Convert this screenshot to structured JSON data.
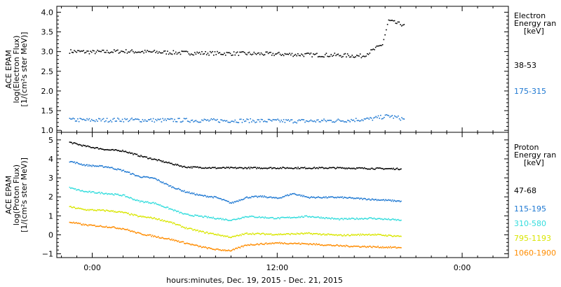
{
  "chart_data": [
    {
      "type": "scatter",
      "panel": "electron",
      "ylabel_lines": [
        "ACE EPAM",
        "log(Electron Flux)",
        "[1/(cm²s ster MeV)]"
      ],
      "legend_title": [
        "Electron",
        "Energy ran",
        "[keV]"
      ],
      "ylim": [
        0.95,
        4.15
      ],
      "yticks": [
        "1.0",
        "1.5",
        "2.0",
        "2.5",
        "3.0",
        "3.5",
        "4.0"
      ],
      "ytick_values": [
        1.0,
        1.5,
        2.0,
        2.5,
        3.0,
        3.5,
        4.0
      ],
      "series": [
        {
          "name": "38-53",
          "color": "#000000",
          "points": [
            [
              -1.5,
              3.02
            ],
            [
              0,
              3.0
            ],
            [
              2,
              3.02
            ],
            [
              4,
              3.0
            ],
            [
              6,
              2.98
            ],
            [
              8,
              2.97
            ],
            [
              10,
              2.96
            ],
            [
              12,
              2.95
            ],
            [
              14,
              2.93
            ],
            [
              16,
              2.92
            ],
            [
              17.5,
              2.9
            ],
            [
              18.2,
              3.05
            ],
            [
              18.8,
              3.2
            ],
            [
              19.2,
              3.8
            ],
            [
              19.8,
              3.72
            ],
            [
              20.2,
              3.7
            ]
          ]
        },
        {
          "name": "175-315",
          "color": "#1e78d2",
          "points": [
            [
              -1.5,
              1.28
            ],
            [
              0,
              1.27
            ],
            [
              2,
              1.28
            ],
            [
              4,
              1.27
            ],
            [
              6,
              1.27
            ],
            [
              8,
              1.26
            ],
            [
              10,
              1.26
            ],
            [
              12,
              1.25
            ],
            [
              14,
              1.25
            ],
            [
              16,
              1.26
            ],
            [
              18,
              1.3
            ],
            [
              19.2,
              1.38
            ],
            [
              20.2,
              1.3
            ]
          ]
        }
      ]
    },
    {
      "type": "scatter",
      "panel": "proton",
      "ylabel_lines": [
        "ACE EPAM",
        "log(Proton Flux)",
        "[1/(cm²s ster MeV)]"
      ],
      "legend_title": [
        "Proton",
        "Energy ran",
        "[keV]"
      ],
      "ylim": [
        -1.2,
        5.4
      ],
      "yticks": [
        "−1",
        "0",
        "1",
        "2",
        "3",
        "4",
        "5"
      ],
      "ytick_values": [
        -1,
        0,
        1,
        2,
        3,
        4,
        5
      ],
      "series": [
        {
          "name": "47-68",
          "color": "#000000",
          "points": [
            [
              -1.5,
              4.9
            ],
            [
              -0.5,
              4.7
            ],
            [
              1,
              4.5
            ],
            [
              2,
              4.45
            ],
            [
              3,
              4.2
            ],
            [
              4,
              4.0
            ],
            [
              5,
              3.8
            ],
            [
              6,
              3.6
            ],
            [
              8,
              3.55
            ],
            [
              12,
              3.55
            ],
            [
              16,
              3.55
            ],
            [
              20,
              3.5
            ]
          ]
        },
        {
          "name": "115-195",
          "color": "#1e78d2",
          "points": [
            [
              -1.5,
              3.9
            ],
            [
              -0.5,
              3.7
            ],
            [
              1,
              3.6
            ],
            [
              2,
              3.4
            ],
            [
              3,
              3.1
            ],
            [
              4,
              3.0
            ],
            [
              5,
              2.6
            ],
            [
              6,
              2.3
            ],
            [
              7,
              2.1
            ],
            [
              8,
              2.0
            ],
            [
              9,
              1.7
            ],
            [
              10,
              2.0
            ],
            [
              11,
              2.05
            ],
            [
              12,
              1.95
            ],
            [
              13,
              2.2
            ],
            [
              14,
              2.0
            ],
            [
              16,
              2.0
            ],
            [
              18,
              1.9
            ],
            [
              20,
              1.8
            ]
          ]
        },
        {
          "name": "310-580",
          "color": "#33dddd",
          "points": [
            [
              -1.5,
              2.5
            ],
            [
              -0.5,
              2.3
            ],
            [
              1,
              2.2
            ],
            [
              2,
              2.1
            ],
            [
              3,
              1.8
            ],
            [
              4,
              1.7
            ],
            [
              5,
              1.4
            ],
            [
              6,
              1.1
            ],
            [
              7,
              1.0
            ],
            [
              8,
              0.9
            ],
            [
              9,
              0.8
            ],
            [
              10,
              1.0
            ],
            [
              12,
              0.9
            ],
            [
              14,
              1.0
            ],
            [
              16,
              0.85
            ],
            [
              18,
              0.9
            ],
            [
              20,
              0.8
            ]
          ]
        },
        {
          "name": "795-1193",
          "color": "#d9e600",
          "points": [
            [
              -1.5,
              1.5
            ],
            [
              -0.5,
              1.35
            ],
            [
              1,
              1.3
            ],
            [
              2,
              1.2
            ],
            [
              3,
              1.0
            ],
            [
              4,
              0.9
            ],
            [
              5,
              0.7
            ],
            [
              6,
              0.4
            ],
            [
              7,
              0.2
            ],
            [
              8,
              0.05
            ],
            [
              9,
              -0.1
            ],
            [
              10,
              0.1
            ],
            [
              12,
              0.05
            ],
            [
              14,
              0.1
            ],
            [
              16,
              0.0
            ],
            [
              18,
              0.05
            ],
            [
              20,
              -0.05
            ]
          ]
        },
        {
          "name": "1060-1900",
          "color": "#ff8c00",
          "points": [
            [
              -1.5,
              0.7
            ],
            [
              -0.5,
              0.55
            ],
            [
              1,
              0.45
            ],
            [
              2,
              0.35
            ],
            [
              3,
              0.1
            ],
            [
              4,
              -0.05
            ],
            [
              5,
              -0.2
            ],
            [
              6,
              -0.4
            ],
            [
              7,
              -0.6
            ],
            [
              8,
              -0.75
            ],
            [
              9,
              -0.8
            ],
            [
              10,
              -0.5
            ],
            [
              12,
              -0.4
            ],
            [
              14,
              -0.45
            ],
            [
              16,
              -0.55
            ],
            [
              18,
              -0.6
            ],
            [
              20,
              -0.65
            ]
          ]
        }
      ]
    }
  ],
  "x_axis": {
    "xlim": [
      -2.3,
      27
    ],
    "ticks": [
      {
        "value": 0,
        "label": "0:00"
      },
      {
        "value": 12,
        "label": "12:00"
      },
      {
        "value": 24,
        "label": "0:00"
      }
    ],
    "label": "hours:minutes, Dec. 19, 2015 - Dec. 21, 2015"
  }
}
